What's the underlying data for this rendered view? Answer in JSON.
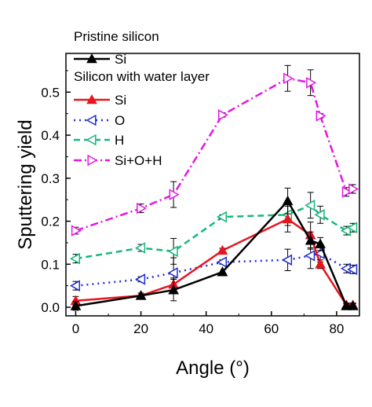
{
  "chart_data": {
    "type": "line",
    "xlabel": "Angle (°)",
    "ylabel": "Sputtering yield",
    "xlim": [
      -3,
      87
    ],
    "ylim": [
      -0.02,
      0.59
    ],
    "x_ticks": [
      0,
      20,
      40,
      60,
      80
    ],
    "y_ticks": [
      0.0,
      0.1,
      0.2,
      0.3,
      0.4,
      0.5
    ],
    "x_tick_labels": [
      "0",
      "20",
      "40",
      "60",
      "80"
    ],
    "y_tick_labels": [
      "0.0",
      "0.1",
      "0.2",
      "0.3",
      "0.4",
      "0.5"
    ],
    "legend": {
      "placement": "top-left",
      "group_titles": [
        "Pristine silicon",
        "Silicon with water layer"
      ]
    },
    "series": [
      {
        "name": "Si",
        "group": "Pristine silicon",
        "color": "#000000",
        "marker": "triangle-up",
        "line": "solid",
        "x": [
          0,
          20,
          30,
          45,
          65,
          72,
          75,
          83,
          85
        ],
        "y": [
          0.003,
          0.027,
          0.04,
          0.082,
          0.247,
          0.155,
          0.147,
          0.003,
          0.003
        ],
        "err": [
          0.01,
          0.006,
          0.025,
          0,
          0.03,
          0.02,
          0.015,
          0.005,
          0.005
        ]
      },
      {
        "name": "Si",
        "group": "Silicon with water layer",
        "color": "#e8141e",
        "marker": "triangle-up",
        "line": "solid",
        "x": [
          0,
          20,
          30,
          45,
          65,
          72,
          75,
          83,
          85
        ],
        "y": [
          0.015,
          0.027,
          0.053,
          0.132,
          0.205,
          0.168,
          0.1,
          0.005,
          0.005
        ],
        "err": [
          0.01,
          0.006,
          0.015,
          0.005,
          0.03,
          0.03,
          0.01,
          0.005,
          0.005
        ]
      },
      {
        "name": "O",
        "group": "Silicon with water layer",
        "color": "#1f2fd0",
        "marker": "triangle-left-open",
        "line": "dotted",
        "x": [
          0,
          20,
          30,
          45,
          65,
          72,
          75,
          83,
          85
        ],
        "y": [
          0.05,
          0.065,
          0.08,
          0.105,
          0.11,
          0.12,
          0.125,
          0.09,
          0.088
        ],
        "err": [
          0.01,
          0.006,
          0.035,
          0.005,
          0.025,
          0.03,
          0.02,
          0.01,
          0.01
        ]
      },
      {
        "name": "H",
        "group": "Silicon with water layer",
        "color": "#15b87a",
        "marker": "triangle-left-open",
        "line": "dashed",
        "x": [
          0,
          20,
          30,
          45,
          65,
          72,
          75,
          83,
          85
        ],
        "y": [
          0.113,
          0.138,
          0.13,
          0.21,
          0.215,
          0.237,
          0.215,
          0.178,
          0.185
        ],
        "err": [
          0.01,
          0.008,
          0.03,
          0.005,
          0.025,
          0.03,
          0.02,
          0.01,
          0.01
        ]
      },
      {
        "name": "Si+O+H",
        "group": "Silicon with water layer",
        "color": "#e515e5",
        "marker": "triangle-right-open",
        "line": "dashdot",
        "x": [
          0,
          20,
          30,
          45,
          65,
          72,
          75,
          83,
          85
        ],
        "y": [
          0.178,
          0.23,
          0.262,
          0.447,
          0.532,
          0.522,
          0.445,
          0.268,
          0.275
        ],
        "err": [
          0.008,
          0.01,
          0.03,
          0.005,
          0.03,
          0.03,
          0.005,
          0.01,
          0.01
        ]
      }
    ]
  }
}
